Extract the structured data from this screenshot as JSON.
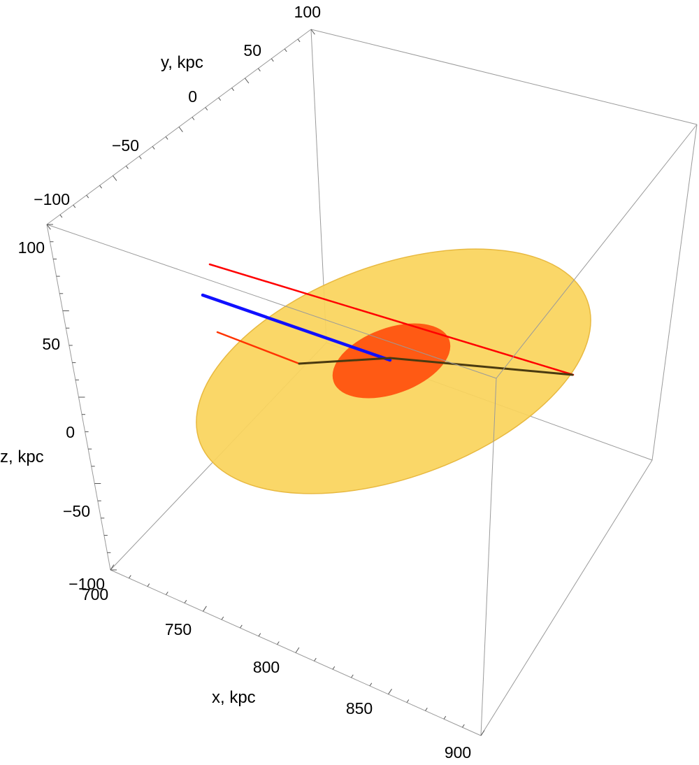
{
  "chart_data": {
    "type": "scatter3d",
    "axes": {
      "x": {
        "label": "x, kpc",
        "range": [
          700,
          900
        ],
        "ticks": [
          "700",
          "750",
          "800",
          "850",
          "900"
        ]
      },
      "y": {
        "label": "y, kpc",
        "range": [
          -100,
          100
        ],
        "ticks": [
          "−100",
          "−50",
          "0",
          "50",
          "100"
        ]
      },
      "z": {
        "label": "z, kpc",
        "range": [
          -100,
          100
        ],
        "ticks": [
          "−100",
          "−50",
          "0",
          "50",
          "100"
        ]
      }
    },
    "box": true,
    "grid": false,
    "objects": [
      {
        "name": "outer disk",
        "kind": "ellipse",
        "color": "#FAD45C"
      },
      {
        "name": "inner disk",
        "kind": "ellipse",
        "color": "#FF5A14"
      },
      {
        "name": "red line (upper)",
        "kind": "line",
        "color": "#FF0000"
      },
      {
        "name": "blue line",
        "kind": "line",
        "color": "#1010FF"
      },
      {
        "name": "orange-red line",
        "kind": "line",
        "color": "#FF3300"
      },
      {
        "name": "dark path",
        "kind": "line",
        "color": "#4A3A10"
      }
    ]
  }
}
